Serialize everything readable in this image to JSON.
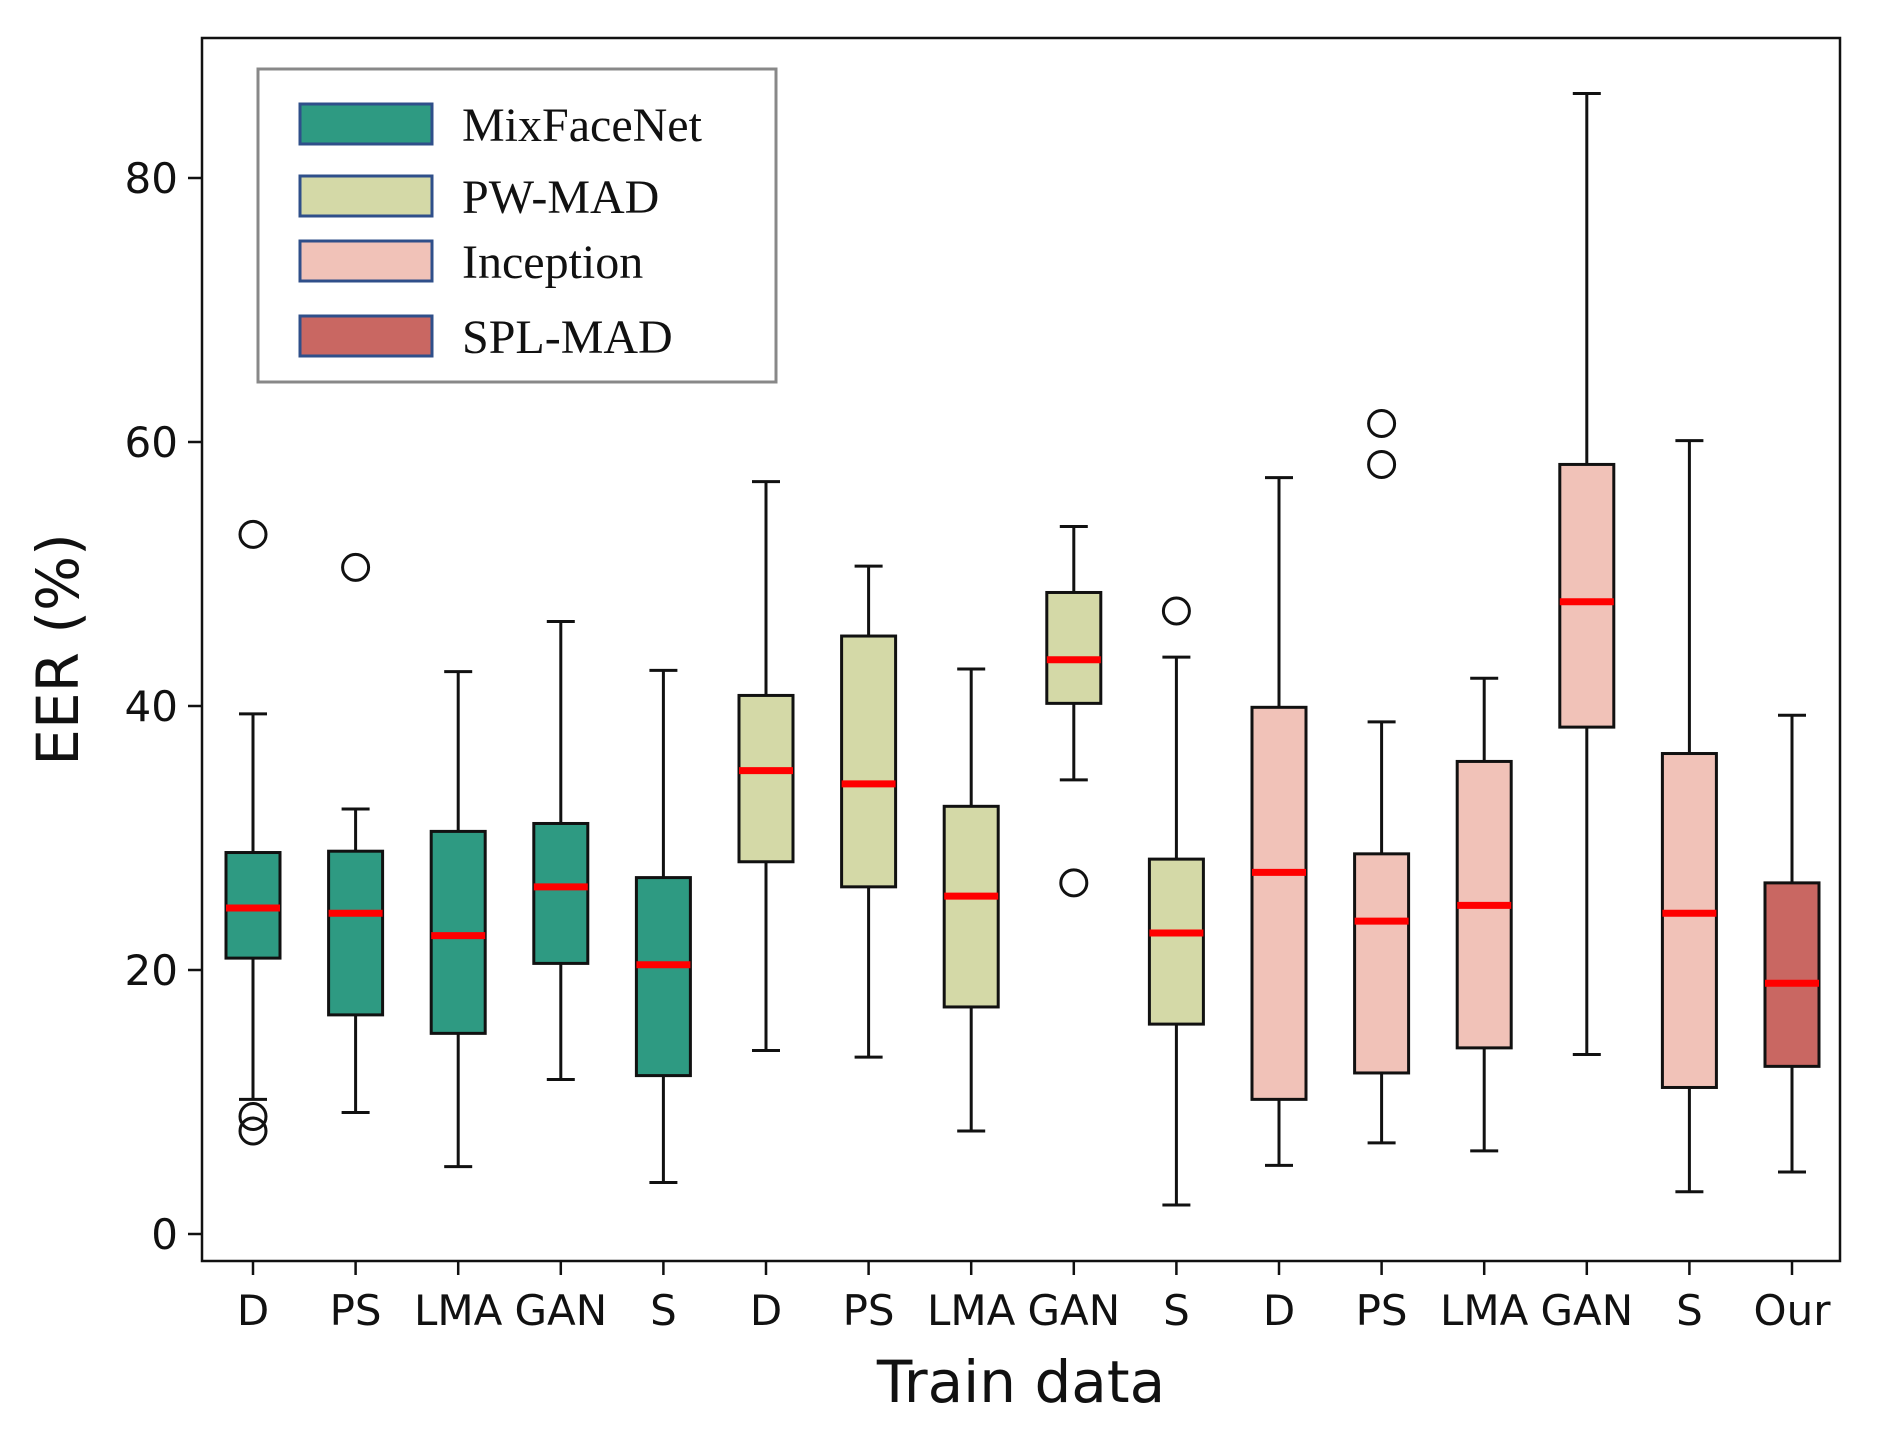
{
  "chart_data": {
    "type": "box",
    "xlabel": "Train data",
    "ylabel": "EER (%)",
    "ylim": [
      -2,
      93
    ],
    "yticks": [
      0,
      20,
      40,
      60,
      80
    ],
    "grid": false,
    "legend_position": "top-left",
    "categories": [
      "D",
      "PS",
      "LMA",
      "GAN",
      "S",
      "D",
      "PS",
      "LMA",
      "GAN",
      "S",
      "D",
      "PS",
      "LMA",
      "GAN",
      "S",
      "Our"
    ],
    "series": [
      {
        "name": "MixFaceNet",
        "color": "#2e9a82",
        "boxes": [
          {
            "category": "D",
            "whisker_low": 10.2,
            "q1": 20.9,
            "median": 24.7,
            "q3": 28.9,
            "whisker_high": 39.4,
            "outliers": [
              53.0,
              8.9,
              7.8
            ]
          },
          {
            "category": "PS",
            "whisker_low": 9.2,
            "q1": 16.6,
            "median": 24.3,
            "q3": 29.0,
            "whisker_high": 32.2,
            "outliers": [
              50.5
            ]
          },
          {
            "category": "LMA",
            "whisker_low": 5.1,
            "q1": 15.2,
            "median": 22.6,
            "q3": 30.5,
            "whisker_high": 42.6,
            "outliers": []
          },
          {
            "category": "GAN",
            "whisker_low": 11.7,
            "q1": 20.5,
            "median": 26.3,
            "q3": 31.1,
            "whisker_high": 46.4,
            "outliers": []
          },
          {
            "category": "S",
            "whisker_low": 3.9,
            "q1": 12.0,
            "median": 20.4,
            "q3": 27.0,
            "whisker_high": 42.7,
            "outliers": []
          }
        ]
      },
      {
        "name": "PW-MAD",
        "color": "#d4d9a7",
        "boxes": [
          {
            "category": "D",
            "whisker_low": 13.9,
            "q1": 28.2,
            "median": 35.1,
            "q3": 40.8,
            "whisker_high": 57.0,
            "outliers": []
          },
          {
            "category": "PS",
            "whisker_low": 13.4,
            "q1": 26.3,
            "median": 34.1,
            "q3": 45.3,
            "whisker_high": 50.6,
            "outliers": []
          },
          {
            "category": "LMA",
            "whisker_low": 7.8,
            "q1": 17.2,
            "median": 25.6,
            "q3": 32.4,
            "whisker_high": 42.8,
            "outliers": []
          },
          {
            "category": "GAN",
            "whisker_low": 34.4,
            "q1": 40.2,
            "median": 43.5,
            "q3": 48.6,
            "whisker_high": 53.6,
            "outliers": [
              26.6
            ]
          },
          {
            "category": "S",
            "whisker_low": 2.2,
            "q1": 15.9,
            "median": 22.8,
            "q3": 28.4,
            "whisker_high": 43.7,
            "outliers": [
              47.2
            ]
          }
        ]
      },
      {
        "name": "Inception",
        "color": "#f1c2b8",
        "boxes": [
          {
            "category": "D",
            "whisker_low": 5.2,
            "q1": 10.2,
            "median": 27.4,
            "q3": 39.9,
            "whisker_high": 57.3,
            "outliers": []
          },
          {
            "category": "PS",
            "whisker_low": 6.9,
            "q1": 12.2,
            "median": 23.7,
            "q3": 28.8,
            "whisker_high": 38.8,
            "outliers": [
              61.4,
              58.3
            ]
          },
          {
            "category": "LMA",
            "whisker_low": 6.3,
            "q1": 14.1,
            "median": 24.9,
            "q3": 35.8,
            "whisker_high": 42.1,
            "outliers": []
          },
          {
            "category": "GAN",
            "whisker_low": 13.6,
            "q1": 38.4,
            "median": 47.9,
            "q3": 58.3,
            "whisker_high": 86.4,
            "outliers": []
          },
          {
            "category": "S",
            "whisker_low": 3.2,
            "q1": 11.1,
            "median": 24.3,
            "q3": 36.4,
            "whisker_high": 60.1,
            "outliers": []
          }
        ]
      },
      {
        "name": "SPL-MAD",
        "color": "#c96762",
        "boxes": [
          {
            "category": "Our",
            "whisker_low": 4.7,
            "q1": 12.7,
            "median": 19.0,
            "q3": 26.6,
            "whisker_high": 39.3,
            "outliers": []
          }
        ]
      }
    ]
  }
}
